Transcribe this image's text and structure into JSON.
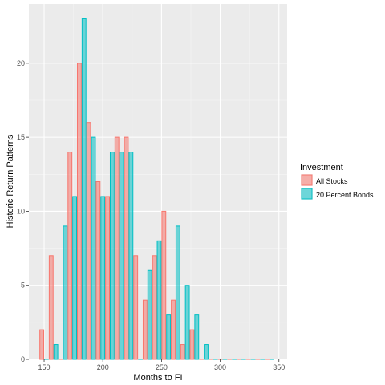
{
  "chart_data": {
    "type": "bar",
    "xlabel": "Months to FI",
    "ylabel": "Historic Return Patterns",
    "xlim": [
      137,
      357
    ],
    "ylim": [
      0,
      24
    ],
    "x_ticks": [
      150,
      200,
      250,
      300,
      350
    ],
    "y_ticks": [
      0,
      5,
      10,
      15,
      20
    ],
    "bin_width": 8,
    "bin_centers": [
      150,
      158,
      166,
      174,
      182,
      190,
      198,
      206,
      214,
      222,
      230,
      238,
      246,
      254,
      262,
      270,
      278,
      286,
      294,
      302,
      310,
      318,
      326,
      334,
      342
    ],
    "legend_title": "Investment",
    "legend_position": "right",
    "grid": true,
    "series": [
      {
        "name": "All Stocks",
        "color": "#f8766d",
        "values": [
          2,
          7,
          0,
          14,
          20,
          16,
          12,
          11,
          15,
          15,
          7,
          4,
          7,
          10,
          4,
          1,
          2,
          0,
          0,
          0,
          0,
          0,
          0,
          0,
          0
        ]
      },
      {
        "name": "20 Percent Bonds",
        "color": "#00bfc4",
        "values": [
          0,
          1,
          9,
          11,
          23,
          15,
          11,
          14,
          14,
          14,
          0,
          6,
          8,
          3,
          9,
          5,
          3,
          1,
          0,
          0,
          0,
          0,
          0,
          0,
          0
        ]
      }
    ]
  }
}
